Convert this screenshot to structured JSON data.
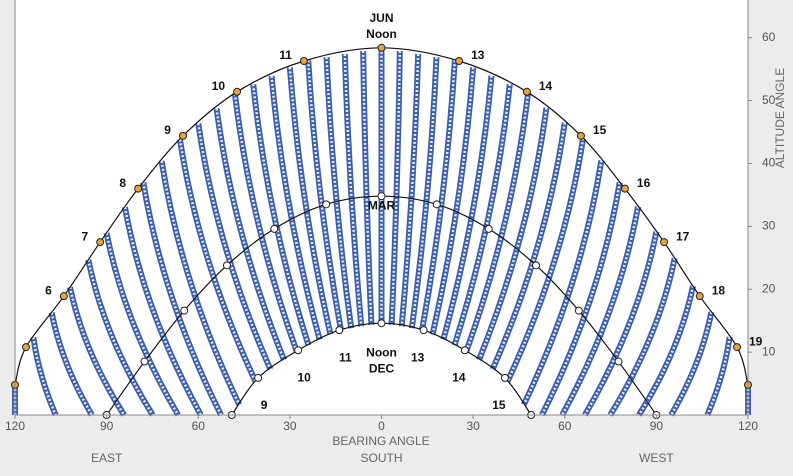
{
  "chart_data": {
    "type": "sunpath",
    "xlabel": "BEARING ANGLE",
    "ylabel": "ALTITUDE ANGLE",
    "direction_labels": [
      "EAST",
      "SOUTH",
      "WEST"
    ],
    "xlim": [
      -120,
      120
    ],
    "ylim": [
      0,
      66
    ],
    "xticks": [
      {
        "value": -120,
        "label": "120"
      },
      {
        "value": -90,
        "label": "90"
      },
      {
        "value": -60,
        "label": "60"
      },
      {
        "value": -30,
        "label": "30"
      },
      0,
      {
        "value": 30,
        "label": "30"
      },
      {
        "value": 60,
        "label": "60"
      },
      {
        "value": 90,
        "label": "90"
      },
      {
        "value": 120,
        "label": "120"
      }
    ],
    "yticks": [
      10,
      20,
      30,
      40,
      50,
      60
    ],
    "series": [
      {
        "name": "JUN",
        "color": "#111111",
        "marker_color": "#e8a33c",
        "x": [
          -120,
          -116.4,
          -104,
          -92.1,
          -79.7,
          -65,
          -47.3,
          -25.4,
          0,
          25.4,
          47.6,
          65.3,
          79.7,
          92.5,
          104.2,
          116.4,
          120
        ],
        "values": [
          4.8,
          10.8,
          18.9,
          27.5,
          36,
          44.4,
          51.4,
          56.3,
          58.4,
          56.3,
          51.4,
          44.4,
          36,
          27.5,
          18.9,
          10.8,
          4.8
        ],
        "labels": [
          null,
          null,
          "6",
          "7",
          "8",
          "9",
          "10",
          "11",
          "Noon",
          "13",
          "14",
          "15",
          "16",
          "17",
          "18",
          "19",
          null
        ]
      },
      {
        "name": "MAR",
        "color": "#111111",
        "marker_color": "#ffffff",
        "x": [
          -90,
          -77.6,
          -64.6,
          -50.6,
          -35.1,
          -18.1,
          0,
          18.1,
          35.1,
          50.6,
          64.6,
          77.6,
          90
        ],
        "values": [
          0,
          8.5,
          16.6,
          23.8,
          29.6,
          33.5,
          34.8,
          33.5,
          29.6,
          23.8,
          16.6,
          8.5,
          0
        ],
        "labels": [
          null,
          null,
          null,
          null,
          null,
          null,
          null,
          null,
          null,
          null,
          null,
          null,
          null
        ]
      },
      {
        "name": "DEC",
        "color": "#111111",
        "marker_color": "#ffffff",
        "x": [
          -49,
          -40.4,
          -27.3,
          -13.8,
          0,
          13.8,
          27.3,
          40.4,
          49
        ],
        "values": [
          0,
          5.9,
          10.3,
          13.5,
          14.6,
          13.5,
          10.3,
          5.9,
          0
        ],
        "labels": [
          null,
          "9",
          "10",
          "11",
          "Noon",
          "13",
          "14",
          "15",
          null
        ]
      }
    ]
  }
}
